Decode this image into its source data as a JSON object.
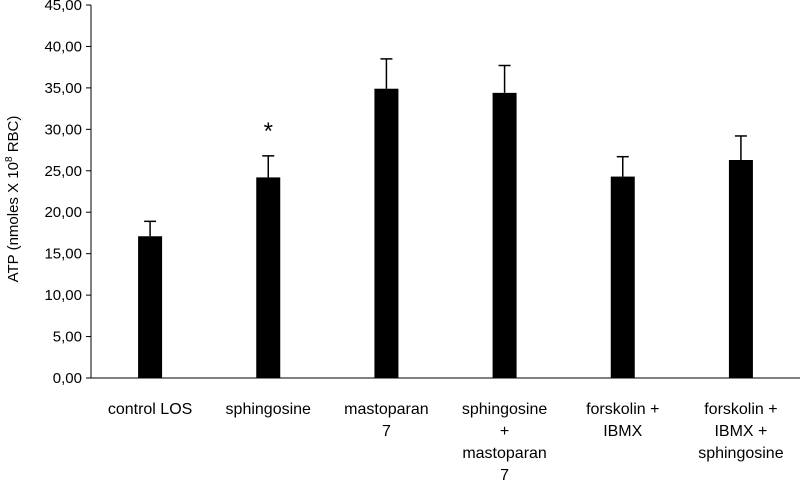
{
  "chart_data": {
    "type": "bar",
    "title": "",
    "ylabel_parts": {
      "base": "ATP (nmoles X 10",
      "sup": "8",
      "end": " RBC)"
    },
    "ylim": [
      0,
      45
    ],
    "ytick_step": 5,
    "ytick_labels": [
      "0,00",
      "5,00",
      "10,00",
      "15,00",
      "20,00",
      "25,00",
      "30,00",
      "35,00",
      "40,00",
      "45,00"
    ],
    "categories": [
      [
        "control LOS"
      ],
      [
        "sphingosine"
      ],
      [
        "mastoparan",
        "7"
      ],
      [
        "sphingosine",
        "+",
        "mastoparan",
        "7"
      ],
      [
        "forskolin +",
        "IBMX"
      ],
      [
        "forskolin +",
        "IBMX +",
        "sphingosine"
      ]
    ],
    "values": [
      17.1,
      24.2,
      34.9,
      34.4,
      24.3,
      26.3
    ],
    "errors": [
      1.8,
      2.6,
      3.6,
      3.3,
      2.4,
      2.9
    ],
    "annotations": [
      {
        "category_index": 1,
        "text": "*"
      }
    ],
    "bar_color": "#000000",
    "grid": false,
    "legend": "none"
  }
}
